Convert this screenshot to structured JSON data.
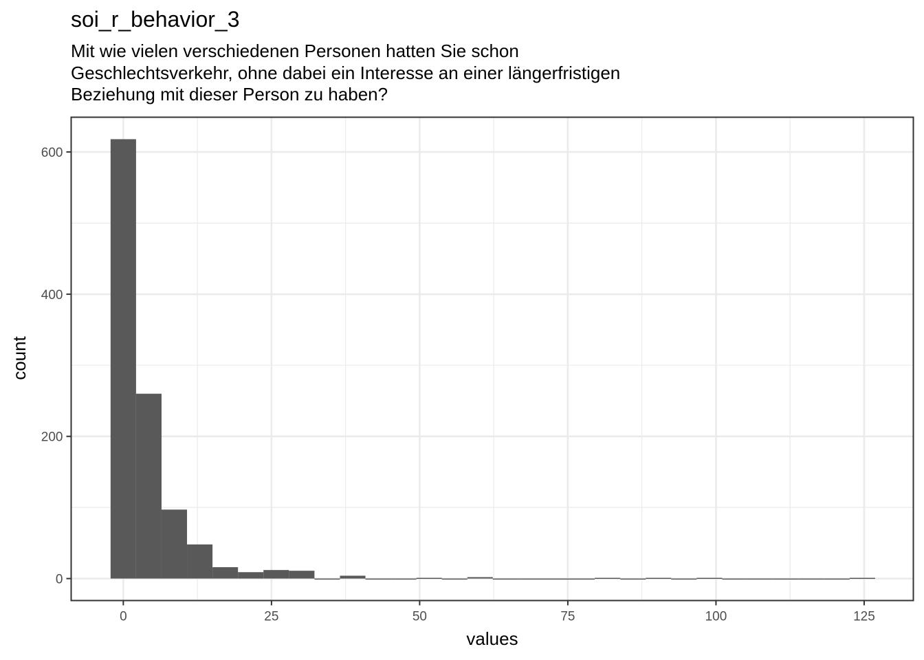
{
  "chart_data": {
    "type": "bar",
    "title": "soi_r_behavior_3",
    "subtitle_lines": [
      "Mit wie vielen verschiedenen Personen hatten Sie schon",
      "Geschlechtsverkehr, ohne dabei ein Interesse an einer längerfristigen",
      "Beziehung mit dieser Person zu haben?"
    ],
    "xlabel": "values",
    "ylabel": "count",
    "xlim": [
      -8.8,
      133.3
    ],
    "ylim": [
      -30.9,
      648.9
    ],
    "x_ticks": [
      0,
      25,
      50,
      75,
      100,
      125
    ],
    "x_tick_labels": [
      "0",
      "25",
      "50",
      "75",
      "100",
      "125"
    ],
    "y_ticks": [
      0,
      200,
      400,
      600
    ],
    "y_tick_labels": [
      "0",
      "200",
      "400",
      "600"
    ],
    "x_minor_ticks": [
      12.5,
      37.5,
      62.5,
      87.5,
      112.5
    ],
    "y_minor_ticks": [
      100,
      300,
      500
    ],
    "grid": true,
    "bar_color": "#595959",
    "bin_width": 4.3,
    "bins": [
      {
        "x": 0,
        "count": 618
      },
      {
        "x": 4.3,
        "count": 260
      },
      {
        "x": 8.6,
        "count": 97
      },
      {
        "x": 12.9,
        "count": 48
      },
      {
        "x": 17.2,
        "count": 16
      },
      {
        "x": 21.5,
        "count": 9
      },
      {
        "x": 25.8,
        "count": 12
      },
      {
        "x": 30.1,
        "count": 11
      },
      {
        "x": 34.4,
        "count": 0
      },
      {
        "x": 38.7,
        "count": 4
      },
      {
        "x": 43.0,
        "count": 0
      },
      {
        "x": 47.3,
        "count": 0
      },
      {
        "x": 51.6,
        "count": 1
      },
      {
        "x": 55.9,
        "count": 0
      },
      {
        "x": 60.2,
        "count": 2
      },
      {
        "x": 64.5,
        "count": 0
      },
      {
        "x": 68.8,
        "count": 0
      },
      {
        "x": 73.1,
        "count": 0
      },
      {
        "x": 77.4,
        "count": 0
      },
      {
        "x": 81.7,
        "count": 1
      },
      {
        "x": 86.0,
        "count": 0
      },
      {
        "x": 90.3,
        "count": 1
      },
      {
        "x": 94.6,
        "count": 0
      },
      {
        "x": 98.9,
        "count": 1
      },
      {
        "x": 103.2,
        "count": 0
      },
      {
        "x": 107.5,
        "count": 0
      },
      {
        "x": 111.8,
        "count": 0
      },
      {
        "x": 116.1,
        "count": 0
      },
      {
        "x": 120.4,
        "count": 0
      },
      {
        "x": 124.7,
        "count": 1
      }
    ]
  }
}
